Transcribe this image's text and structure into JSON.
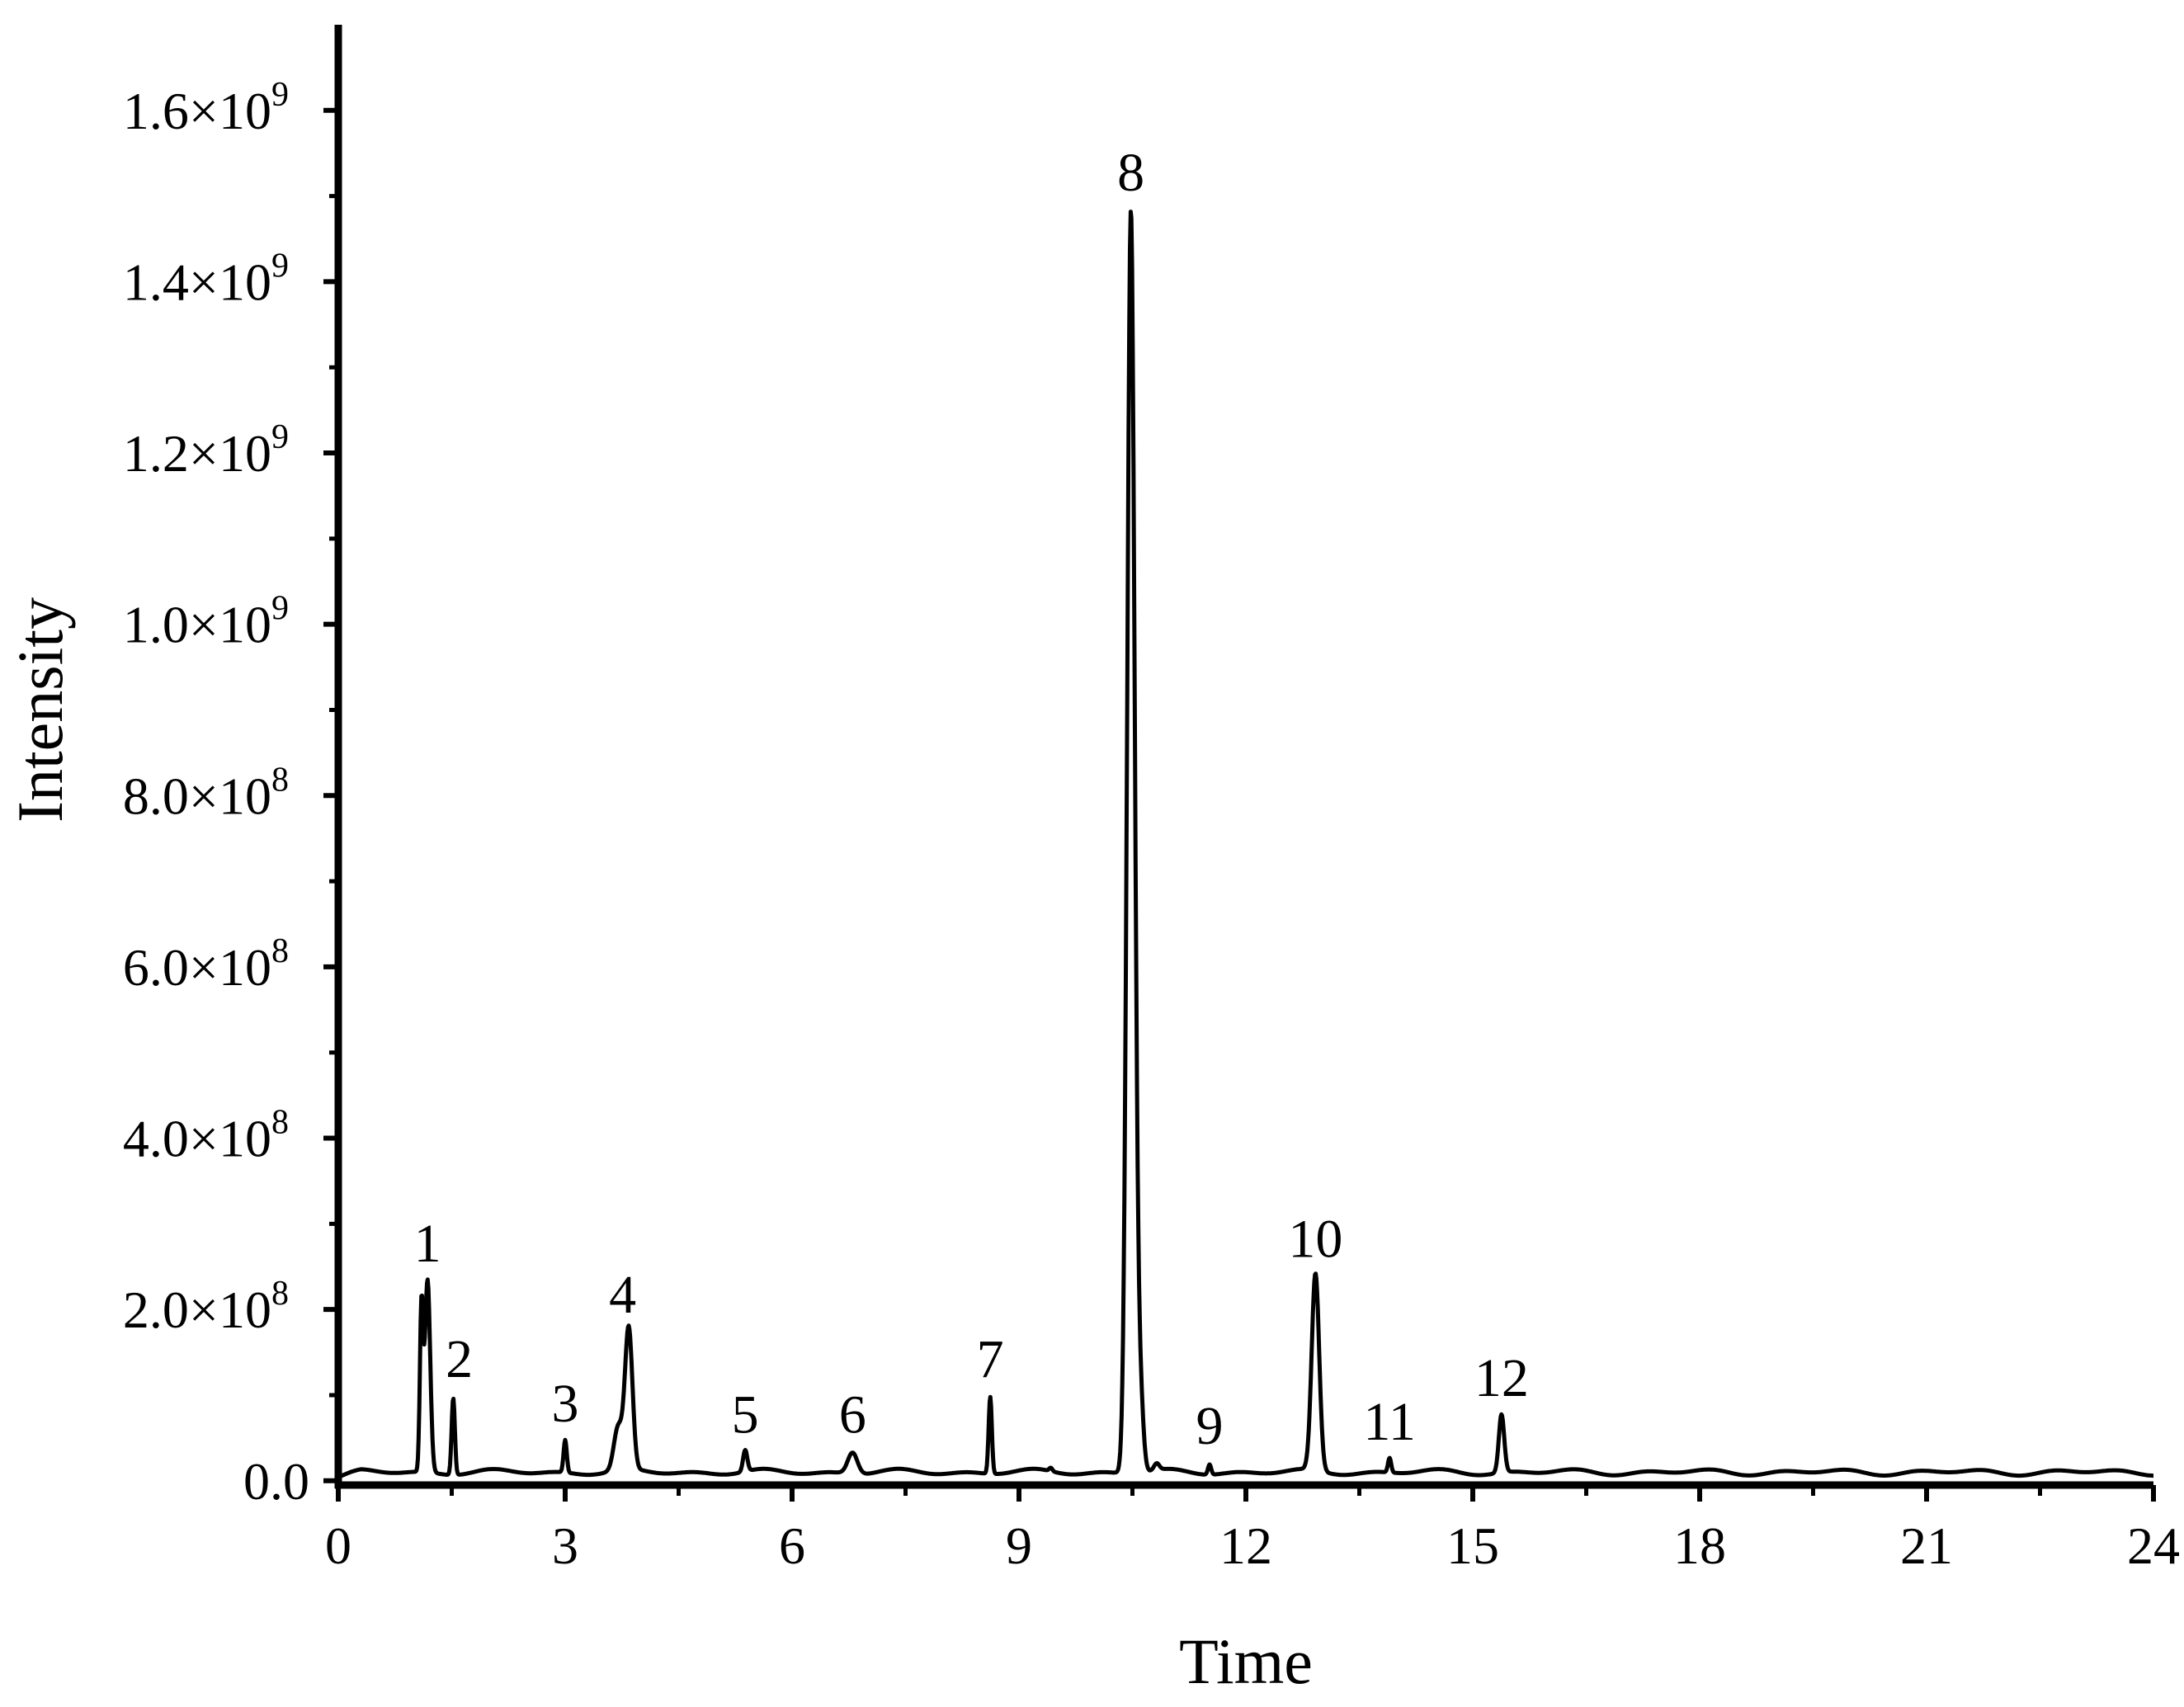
{
  "chart_data": {
    "type": "line",
    "title": "",
    "xlabel": "Time",
    "ylabel": "Intensity",
    "xlim": [
      0,
      24
    ],
    "ylim": [
      -5000000.0,
      1700000000.0
    ],
    "x_ticks": [
      {
        "value": 0,
        "label": "0"
      },
      {
        "value": 3,
        "label": "3"
      },
      {
        "value": 6,
        "label": "6"
      },
      {
        "value": 9,
        "label": "9"
      },
      {
        "value": 12,
        "label": "12"
      },
      {
        "value": 15,
        "label": "15"
      },
      {
        "value": 18,
        "label": "18"
      },
      {
        "value": 21,
        "label": "21"
      },
      {
        "value": 24,
        "label": "24"
      }
    ],
    "y_ticks": [
      {
        "value": 0,
        "mant": "0.0",
        "exp": ""
      },
      {
        "value": 200000000,
        "mant": "2.0×10",
        "exp": "8"
      },
      {
        "value": 400000000,
        "mant": "4.0×10",
        "exp": "8"
      },
      {
        "value": 600000000,
        "mant": "6.0×10",
        "exp": "8"
      },
      {
        "value": 800000000,
        "mant": "8.0×10",
        "exp": "8"
      },
      {
        "value": 1000000000,
        "mant": "1.0×10",
        "exp": "9"
      },
      {
        "value": 1200000000,
        "mant": "1.2×10",
        "exp": "9"
      },
      {
        "value": 1400000000,
        "mant": "1.4×10",
        "exp": "9"
      },
      {
        "value": 1600000000,
        "mant": "1.6×10",
        "exp": "9"
      }
    ],
    "baseline": 10000000,
    "peaks": [
      {
        "label": "1",
        "time": 1.18,
        "intensity": 235000000,
        "width": 0.05,
        "label_dx": 0,
        "label_dy": 0
      },
      {
        "label": "2",
        "time": 1.52,
        "intensity": 100000000,
        "width": 0.03,
        "label_dx": 0.08,
        "label_dy": 0
      },
      {
        "label": "3",
        "time": 3.0,
        "intensity": 48000000,
        "width": 0.03,
        "label_dx": 0,
        "label_dy": 0
      },
      {
        "label": "4",
        "time": 3.84,
        "intensity": 175000000,
        "width": 0.07,
        "label_dx": -0.08,
        "label_dy": 0
      },
      {
        "label": "5",
        "time": 5.38,
        "intensity": 35000000,
        "width": 0.04,
        "label_dx": 0,
        "label_dy": 0
      },
      {
        "label": "6",
        "time": 6.8,
        "intensity": 35000000,
        "width": 0.09,
        "label_dx": 0,
        "label_dy": 0
      },
      {
        "label": "7",
        "time": 8.62,
        "intensity": 100000000,
        "width": 0.03,
        "label_dx": 0,
        "label_dy": 0
      },
      {
        "label": "8",
        "time": 10.48,
        "intensity": 1485000000,
        "width": 0.07,
        "label_dx": 0,
        "label_dy": 0
      },
      {
        "label": "9",
        "time": 11.52,
        "intensity": 22000000,
        "width": 0.03,
        "label_dx": 0,
        "label_dy": 0
      },
      {
        "label": "10",
        "time": 12.92,
        "intensity": 240000000,
        "width": 0.07,
        "label_dx": 0,
        "label_dy": 0
      },
      {
        "label": "11",
        "time": 13.9,
        "intensity": 27000000,
        "width": 0.03,
        "label_dx": 0,
        "label_dy": 0
      },
      {
        "label": "12",
        "time": 15.38,
        "intensity": 78000000,
        "width": 0.05,
        "label_dx": 0,
        "label_dy": 0
      }
    ],
    "minor_peaks": [
      {
        "time": 1.1,
        "intensity": 200000000,
        "width": 0.03
      },
      {
        "time": 3.7,
        "intensity": 60000000,
        "width": 0.08
      },
      {
        "time": 6.6,
        "intensity": 10000000,
        "width": 0.05
      },
      {
        "time": 9.42,
        "intensity": 14000000,
        "width": 0.03
      },
      {
        "time": 10.6,
        "intensity": 100000000,
        "width": 0.06
      },
      {
        "time": 10.82,
        "intensity": 18000000,
        "width": 0.05
      },
      {
        "time": 11.12,
        "intensity": 10000000,
        "width": 0.03
      }
    ],
    "legend": "none",
    "grid": false
  }
}
